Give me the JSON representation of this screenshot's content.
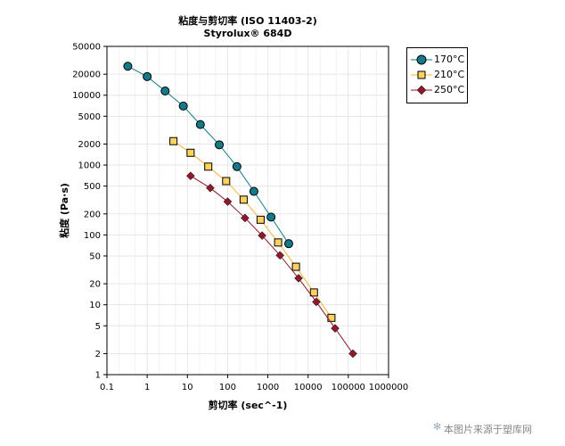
{
  "chart_data": {
    "type": "line",
    "title": "粘度与剪切率 (ISO 11403-2)",
    "subtitle": "Styrolux® 684D",
    "xlabel": "剪切率 (sec^-1)",
    "ylabel": "粘度 (Pa·s)",
    "xscale": "log",
    "yscale": "log",
    "xlim": [
      0.1,
      1000000
    ],
    "ylim": [
      1,
      50000
    ],
    "x_ticks": [
      "0.1",
      "1",
      "10",
      "100",
      "1000",
      "10000",
      "100000",
      "1000000"
    ],
    "y_ticks": [
      "1",
      "2",
      "5",
      "10",
      "20",
      "50",
      "100",
      "200",
      "500",
      "1000",
      "2000",
      "5000",
      "10000",
      "20000",
      "50000"
    ],
    "grid": true,
    "legend_position": "top-right, outside plot",
    "series": [
      {
        "name": "170°C",
        "color": "#127a8a",
        "marker": "circle",
        "marker_color": "#127a8a",
        "points": [
          [
            0.33,
            26000
          ],
          [
            1.0,
            18500
          ],
          [
            2.8,
            11500
          ],
          [
            7.9,
            7000
          ],
          [
            21,
            3800
          ],
          [
            62,
            1950
          ],
          [
            170,
            950
          ],
          [
            450,
            420
          ],
          [
            1200,
            180
          ],
          [
            3300,
            75
          ]
        ]
      },
      {
        "name": "210°C",
        "color": "#f0b53c",
        "marker": "square",
        "marker_color": "#ffd260",
        "points": [
          [
            4.5,
            2200
          ],
          [
            12,
            1500
          ],
          [
            33,
            950
          ],
          [
            92,
            590
          ],
          [
            250,
            320
          ],
          [
            660,
            165
          ],
          [
            1800,
            78
          ],
          [
            5000,
            35
          ],
          [
            14000,
            15
          ],
          [
            38000,
            6.5
          ]
        ]
      },
      {
        "name": "250°C",
        "color": "#8b1a2b",
        "marker": "diamond",
        "marker_color": "#8b1a2b",
        "points": [
          [
            12,
            700
          ],
          [
            37,
            470
          ],
          [
            100,
            300
          ],
          [
            270,
            175
          ],
          [
            720,
            98
          ],
          [
            2000,
            51
          ],
          [
            5800,
            24
          ],
          [
            16000,
            11
          ],
          [
            47000,
            4.6
          ],
          [
            130000,
            2.0
          ]
        ]
      }
    ]
  },
  "watermark": {
    "text": "本图片来源于塑库网",
    "icon": "asterisk-icon"
  }
}
